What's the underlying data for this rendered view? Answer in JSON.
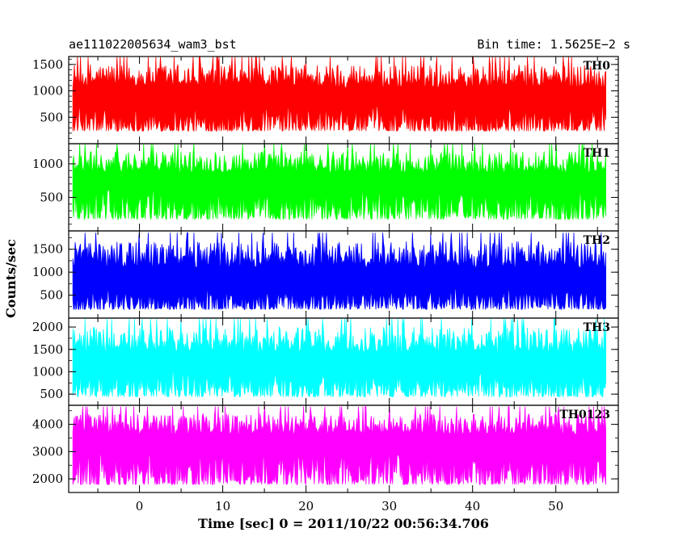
{
  "chart_data": {
    "type": "line",
    "title": "ae111022005634_wam3_bst",
    "subtitle": "Bin time: 1.5625E−2 s",
    "xlabel": "Time [sec] 0 = 2011/10/22 00:56:34.706",
    "ylabel": "Counts/sec",
    "xlim": [
      -8.5,
      57.5
    ],
    "x_range_data": [
      -8,
      56
    ],
    "x_ticks": [
      0,
      10,
      20,
      30,
      40,
      50
    ],
    "panels": [
      {
        "name": "TH0",
        "color": "#ff0000",
        "ylim": [
          0,
          1650
        ],
        "y_ticks": [
          500,
          1000,
          1500
        ],
        "mean": 750,
        "low": 150,
        "high": 1640
      },
      {
        "name": "TH1",
        "color": "#00ff00",
        "ylim": [
          0,
          1300
        ],
        "y_ticks": [
          500,
          1000
        ],
        "mean": 650,
        "low": 90,
        "high": 1290
      },
      {
        "name": "TH2",
        "color": "#0000ff",
        "ylim": [
          0,
          1900
        ],
        "y_ticks": [
          500,
          1000,
          1500
        ],
        "mean": 700,
        "low": 100,
        "high": 1860
      },
      {
        "name": "TH3",
        "color": "#00ffff",
        "ylim": [
          250,
          2200
        ],
        "y_ticks": [
          500,
          1000,
          1500,
          2000
        ],
        "mean": 1050,
        "low": 330,
        "high": 2180
      },
      {
        "name": "TH0123",
        "color": "#ff00ff",
        "ylim": [
          1500,
          4700
        ],
        "y_ticks": [
          2000,
          3000,
          4000
        ],
        "mean": 3100,
        "low": 1560,
        "high": 4650
      }
    ]
  }
}
